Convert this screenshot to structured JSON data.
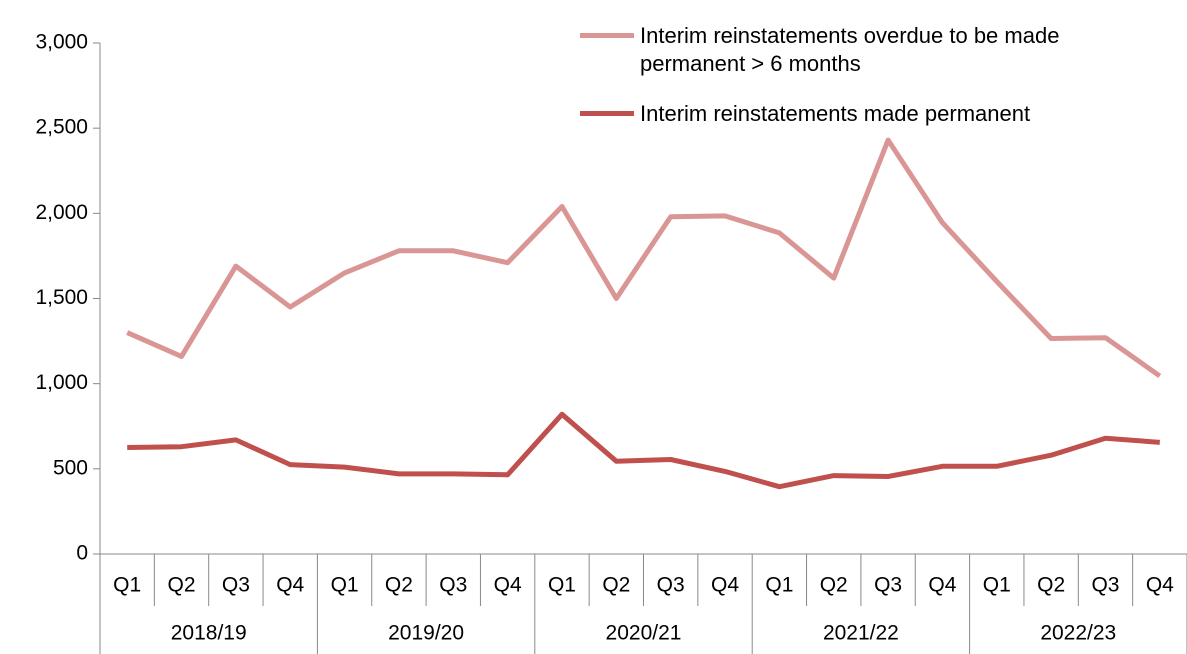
{
  "chart_data": {
    "type": "line",
    "categories": [
      "Q1",
      "Q2",
      "Q3",
      "Q4",
      "Q1",
      "Q2",
      "Q3",
      "Q4",
      "Q1",
      "Q2",
      "Q3",
      "Q4",
      "Q1",
      "Q2",
      "Q3",
      "Q4",
      "Q1",
      "Q2",
      "Q3",
      "Q4"
    ],
    "category_groups": [
      "2018/19",
      "2019/20",
      "2020/21",
      "2021/22",
      "2022/23"
    ],
    "series": [
      {
        "name": "Interim reinstatements overdue to be made permanent > 6 months",
        "color": "#d99694",
        "values": [
          1300,
          1160,
          1690,
          1450,
          1650,
          1780,
          1780,
          1710,
          2040,
          1500,
          1980,
          1985,
          1885,
          1620,
          2430,
          1945,
          1600,
          1265,
          1270,
          1045
        ]
      },
      {
        "name": "Interim reinstatements made permanent",
        "color": "#c0504d",
        "values": [
          625,
          630,
          670,
          525,
          510,
          470,
          470,
          465,
          820,
          545,
          555,
          485,
          395,
          460,
          455,
          515,
          515,
          580,
          680,
          655
        ]
      }
    ],
    "ylim": [
      0,
      3000
    ],
    "yticks": [
      0,
      500,
      {
        "value": 1000,
        "label": "1,000"
      },
      {
        "value": 1500,
        "label": "1,500"
      },
      {
        "value": 2000,
        "label": "2,000"
      },
      {
        "value": 2500,
        "label": "2,500"
      },
      {
        "value": 3000,
        "label": "3,000"
      }
    ],
    "grid": false,
    "legend": "top-right"
  }
}
